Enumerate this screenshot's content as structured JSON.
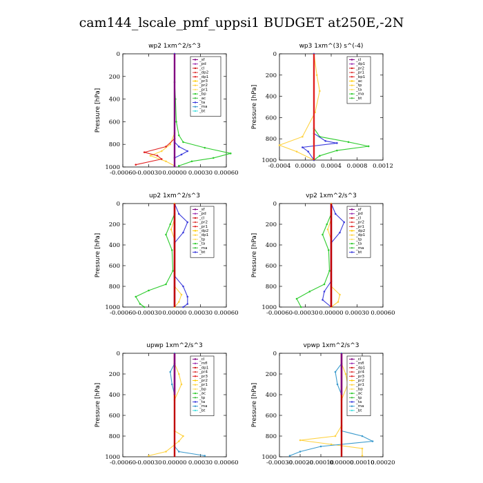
{
  "page": {
    "title": "cam144_lscale_pmf_uppsi1  BUDGET at250E,-2N"
  },
  "chart_data": [
    {
      "type": "line",
      "title": "wp2   1xm^2/s^3",
      "ylabel": "Pressure [hPa]",
      "ylim": [
        1000,
        0
      ],
      "yticks": [
        "0",
        "200",
        "400",
        "600",
        "800",
        "1000"
      ],
      "xlim": [
        -0.0006,
        0.0006
      ],
      "xticks": [
        "-0.00060",
        "-0.00030",
        "0.00000",
        "0.00030",
        "0.00060"
      ],
      "legend": [
        "_sf",
        "_pd",
        "_cl",
        "_dp2",
        "_dp1",
        "_pr3",
        "_pr2",
        "_pr1",
        "_bp",
        "_ac",
        "_ta",
        "_ma",
        "_bt"
      ],
      "series": [
        {
          "name": "_bp",
          "color": "#2ecc2e",
          "points": [
            [
              0,
              0
            ],
            [
              0,
              250
            ],
            [
              1e-05,
              400
            ],
            [
              2e-05,
              600
            ],
            [
              5e-05,
              720
            ],
            [
              0.0001,
              780
            ],
            [
              0.00035,
              830
            ],
            [
              0.00065,
              880
            ],
            [
              0.00045,
              920
            ],
            [
              0.0002,
              950
            ],
            [
              5e-05,
              990
            ]
          ]
        },
        {
          "name": "_pr1",
          "color": "#ffd23f",
          "points": [
            [
              0,
              0
            ],
            [
              0,
              700
            ],
            [
              -5e-05,
              800
            ],
            [
              -0.00015,
              860
            ],
            [
              -0.00028,
              900
            ],
            [
              -0.0001,
              950
            ],
            [
              0,
              990
            ]
          ]
        },
        {
          "name": "_dp1",
          "color": "#e02020",
          "points": [
            [
              0,
              0
            ],
            [
              0,
              750
            ],
            [
              -0.0001,
              820
            ],
            [
              -0.00035,
              870
            ],
            [
              -0.0002,
              900
            ],
            [
              -0.00015,
              930
            ],
            [
              -0.00045,
              980
            ]
          ]
        },
        {
          "name": "_ta",
          "color": "#3a3adc",
          "points": [
            [
              0,
              0
            ],
            [
              0,
              780
            ],
            [
              5e-05,
              820
            ],
            [
              0.00015,
              860
            ],
            [
              8e-05,
              890
            ],
            [
              0,
              920
            ],
            [
              0,
              990
            ]
          ]
        },
        {
          "name": "_pd",
          "color": "#800080",
          "points": [
            [
              0,
              0
            ],
            [
              0,
              1000
            ]
          ]
        }
      ]
    },
    {
      "type": "line",
      "title": "wp3   1xm^(3) s^(-4)",
      "ylabel": "Pressure [hPa]",
      "ylim": [
        1000,
        0
      ],
      "yticks": [
        "0",
        "200",
        "400",
        "600",
        "800",
        "1000"
      ],
      "xlim": [
        -0.0006,
        0.0012
      ],
      "xticks": [
        "-0.0004",
        "0.0000",
        "0.0004",
        "0.0008",
        "0.0012"
      ],
      "legend": [
        "_cl",
        "_dp1",
        "_pr2",
        "_pr1",
        "_bp1",
        "_ac",
        "_tp",
        "_ta",
        "_ma",
        "_bt"
      ],
      "series": [
        {
          "name": "_bp1",
          "color": "#2ecc2e",
          "points": [
            [
              0,
              0
            ],
            [
              0,
              700
            ],
            [
              0.0001,
              780
            ],
            [
              0.0006,
              830
            ],
            [
              0.00095,
              870
            ],
            [
              0.0004,
              910
            ],
            [
              0.0001,
              960
            ],
            [
              0,
              1000
            ]
          ]
        },
        {
          "name": "_pr2",
          "color": "#ffd23f",
          "points": [
            [
              0,
              0
            ],
            [
              5e-05,
              200
            ],
            [
              0.0001,
              350
            ],
            [
              2e-05,
              550
            ],
            [
              -0.0002,
              780
            ],
            [
              -0.0006,
              860
            ],
            [
              -0.0003,
              920
            ],
            [
              0,
              1000
            ]
          ]
        },
        {
          "name": "_tp",
          "color": "#3a3adc",
          "points": [
            [
              0,
              0
            ],
            [
              0,
              750
            ],
            [
              0.0002,
              820
            ],
            [
              0.0004,
              840
            ],
            [
              -0.0002,
              880
            ],
            [
              -0.0001,
              920
            ],
            [
              0,
              1000
            ]
          ]
        },
        {
          "name": "_dp1",
          "color": "#e02020",
          "points": [
            [
              0,
              0
            ],
            [
              0,
              1000
            ]
          ]
        }
      ]
    },
    {
      "type": "line",
      "title": "up2   1xm^2/s^3",
      "ylabel": "Pressure [hPa]",
      "ylim": [
        1000,
        0
      ],
      "yticks": [
        "0",
        "200",
        "400",
        "600",
        "800",
        "1000"
      ],
      "xlim": [
        -0.0006,
        0.0006
      ],
      "xticks": [
        "-0.00060",
        "-0.00030",
        "0.00000",
        "0.00030",
        "0.00060"
      ],
      "legend": [
        "_sf",
        "_pd",
        "_cl",
        "_pr2",
        "_pr1",
        "_dp2",
        "_dp1",
        "_tp",
        "_ta",
        "_ma",
        "_bt"
      ],
      "series": [
        {
          "name": "_dp1",
          "color": "#2ecc2e",
          "points": [
            [
              0,
              0
            ],
            [
              0,
              100
            ],
            [
              -5e-05,
              200
            ],
            [
              -0.0001,
              300
            ],
            [
              -3e-05,
              450
            ],
            [
              -2e-05,
              650
            ],
            [
              -0.0001,
              780
            ],
            [
              -0.0003,
              840
            ],
            [
              -0.00045,
              900
            ],
            [
              -0.0004,
              970
            ],
            [
              -0.00035,
              1000
            ]
          ]
        },
        {
          "name": "_tp",
          "color": "#3a3adc",
          "points": [
            [
              0,
              0
            ],
            [
              5e-05,
              100
            ],
            [
              0.00015,
              180
            ],
            [
              0.0001,
              280
            ],
            [
              0,
              380
            ],
            [
              0,
              700
            ],
            [
              0.0001,
              800
            ],
            [
              0.00015,
              900
            ],
            [
              0.00015,
              970
            ],
            [
              0.0001,
              1000
            ]
          ]
        },
        {
          "name": "_pr1",
          "color": "#ffd23f",
          "points": [
            [
              0,
              0
            ],
            [
              0,
              150
            ],
            [
              -4e-05,
              250
            ],
            [
              0,
              350
            ],
            [
              0,
              800
            ],
            [
              8e-05,
              880
            ],
            [
              5e-05,
              950
            ],
            [
              0,
              1000
            ]
          ]
        },
        {
          "name": "_pd",
          "color": "#800080",
          "points": [
            [
              0,
              0
            ],
            [
              0,
              1000
            ]
          ]
        },
        {
          "name": "_cl",
          "color": "#c00000",
          "points": [
            [
              0,
              0
            ],
            [
              0,
              1000
            ]
          ]
        }
      ]
    },
    {
      "type": "line",
      "title": "vp2   1xm^2/s^3",
      "ylabel": "Pressure [hPa]",
      "ylim": [
        1000,
        0
      ],
      "yticks": [
        "0",
        "200",
        "400",
        "600",
        "800",
        "1000"
      ],
      "xlim": [
        -0.0006,
        0.0006
      ],
      "xticks": [
        "-0.00060",
        "-0.00030",
        "0.00000",
        "0.00030",
        "0.00060"
      ],
      "legend": [
        "_sf",
        "_pd",
        "_cl",
        "_pr2",
        "_pr1",
        "_dp2",
        "_dp1",
        "_tp",
        "_ta",
        "_ma",
        "_bt"
      ],
      "series": [
        {
          "name": "_dp1",
          "color": "#2ecc2e",
          "points": [
            [
              0,
              0
            ],
            [
              0,
              100
            ],
            [
              -5e-05,
              200
            ],
            [
              -0.0001,
              300
            ],
            [
              -3e-05,
              450
            ],
            [
              -2e-05,
              650
            ],
            [
              -8e-05,
              780
            ],
            [
              -0.00025,
              850
            ],
            [
              -0.0004,
              920
            ],
            [
              -0.00035,
              1000
            ]
          ]
        },
        {
          "name": "_tp",
          "color": "#3a3adc",
          "points": [
            [
              0,
              0
            ],
            [
              5e-05,
              100
            ],
            [
              0.00015,
              180
            ],
            [
              0.0001,
              280
            ],
            [
              0,
              380
            ],
            [
              0,
              750
            ],
            [
              -8e-05,
              850
            ],
            [
              -0.0001,
              930
            ],
            [
              0,
              1000
            ]
          ]
        },
        {
          "name": "_pr1",
          "color": "#ffd23f",
          "points": [
            [
              0,
              0
            ],
            [
              0,
              150
            ],
            [
              -4e-05,
              250
            ],
            [
              0,
              350
            ],
            [
              0,
              800
            ],
            [
              0.0001,
              880
            ],
            [
              8e-05,
              950
            ],
            [
              0,
              1000
            ]
          ]
        },
        {
          "name": "_pd",
          "color": "#800080",
          "points": [
            [
              0,
              0
            ],
            [
              0,
              1000
            ]
          ]
        },
        {
          "name": "_cl",
          "color": "#c00000",
          "points": [
            [
              0,
              0
            ],
            [
              0,
              1000
            ]
          ]
        }
      ]
    },
    {
      "type": "line",
      "title": "upwp   1xm^2/s^3",
      "ylabel": "Pressure [hPa]",
      "ylim": [
        1000,
        0
      ],
      "yticks": [
        "0",
        "200",
        "400",
        "600",
        "800",
        "1000"
      ],
      "xlim": [
        -0.0006,
        0.0006
      ],
      "xticks": [
        "-0.00060",
        "-0.00030",
        "0.00000",
        "0.00030",
        "0.00060"
      ],
      "legend": [
        "_cl",
        "_mfl",
        "_dp1",
        "_pr4",
        "_pr3",
        "_pr2",
        "_pr1",
        "_bp",
        "_ac",
        "_tp",
        "_ta",
        "_ma",
        "_bt"
      ],
      "series": [
        {
          "name": "_pr2",
          "color": "#ffd23f",
          "points": [
            [
              0,
              0
            ],
            [
              0,
              100
            ],
            [
              5e-05,
              200
            ],
            [
              8e-05,
              300
            ],
            [
              0,
              450
            ],
            [
              0,
              750
            ],
            [
              0.0001,
              800
            ],
            [
              5e-05,
              850
            ],
            [
              -0.0001,
              950
            ],
            [
              -0.0003,
              990
            ]
          ]
        },
        {
          "name": "_tp",
          "color": "#3a9acd",
          "points": [
            [
              0,
              0
            ],
            [
              0,
              100
            ],
            [
              -5e-05,
              180
            ],
            [
              -3e-05,
              300
            ],
            [
              0,
              400
            ],
            [
              0,
              900
            ],
            [
              5e-05,
              950
            ],
            [
              0.00035,
              990
            ]
          ]
        },
        {
          "name": "_dp1",
          "color": "#c00000",
          "points": [
            [
              0,
              0
            ],
            [
              0,
              1000
            ]
          ]
        },
        {
          "name": "_mfl",
          "color": "#800080",
          "points": [
            [
              0,
              0
            ],
            [
              0,
              400
            ]
          ]
        }
      ]
    },
    {
      "type": "line",
      "title": "vpwp   1xm^2/s^3",
      "ylabel": "Pressure [hPa]",
      "ylim": [
        1000,
        0
      ],
      "yticks": [
        "0",
        "200",
        "400",
        "600",
        "800",
        "1000"
      ],
      "xlim": [
        -0.0003,
        0.0002
      ],
      "xticks": [
        "-0.00030",
        "-0.00020",
        "-0.00010",
        "0.00000",
        "0.00010",
        "0.00020"
      ],
      "legend": [
        "_cl",
        "_mfl",
        "_dp1",
        "_pr4",
        "_pr3",
        "_pr2",
        "_pr1",
        "_bp",
        "_ac",
        "_tp",
        "_ta",
        "_ma",
        "_bt"
      ],
      "series": [
        {
          "name": "_pr2",
          "color": "#ffd23f",
          "points": [
            [
              0,
              0
            ],
            [
              0,
              100
            ],
            [
              2e-05,
              200
            ],
            [
              3e-05,
              300
            ],
            [
              0,
              450
            ],
            [
              0,
              700
            ],
            [
              -3e-05,
              800
            ],
            [
              -0.0002,
              840
            ],
            [
              -5e-05,
              880
            ],
            [
              0.0001,
              920
            ],
            [
              0.0001,
              990
            ]
          ]
        },
        {
          "name": "_tp",
          "color": "#3a9acd",
          "points": [
            [
              0,
              0
            ],
            [
              0,
              100
            ],
            [
              -3e-05,
              180
            ],
            [
              -2e-05,
              300
            ],
            [
              0,
              400
            ],
            [
              0,
              750
            ],
            [
              0.0001,
              800
            ],
            [
              0.00015,
              850
            ],
            [
              -0.0001,
              900
            ],
            [
              -0.0002,
              950
            ],
            [
              -0.00025,
              990
            ]
          ]
        },
        {
          "name": "_dp1",
          "color": "#c00000",
          "points": [
            [
              0,
              0
            ],
            [
              0,
              1000
            ]
          ]
        },
        {
          "name": "_mfl",
          "color": "#800080",
          "points": [
            [
              0,
              0
            ],
            [
              0,
              400
            ]
          ]
        }
      ]
    }
  ]
}
